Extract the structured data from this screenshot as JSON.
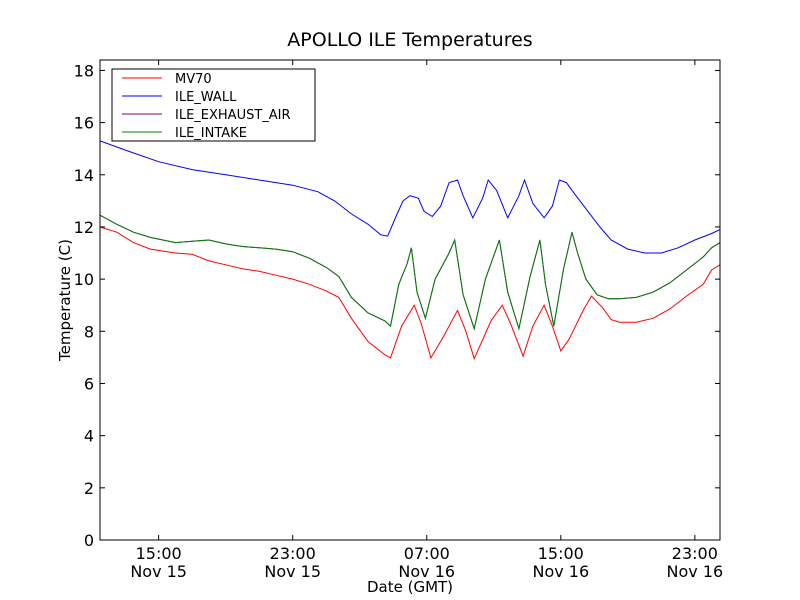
{
  "chart_data": {
    "type": "line",
    "title": "APOLLO ILE Temperatures",
    "xlabel": "Date (GMT)",
    "ylabel": "Temperature (C)",
    "ylim": [
      0,
      18.4
    ],
    "xlim": [
      "Nov 15 11:30",
      "Nov 17 00:30"
    ],
    "grid": false,
    "legend_position": "top-left",
    "yticks": [
      {
        "value": 0,
        "label": "0"
      },
      {
        "value": 2,
        "label": "2"
      },
      {
        "value": 4,
        "label": "4"
      },
      {
        "value": 6,
        "label": "6"
      },
      {
        "value": 8,
        "label": "8"
      },
      {
        "value": 10,
        "label": "10"
      },
      {
        "value": 12,
        "label": "12"
      },
      {
        "value": 14,
        "label": "14"
      },
      {
        "value": 16,
        "label": "16"
      },
      {
        "value": 18,
        "label": "18"
      }
    ],
    "xticks": [
      {
        "value": "Nov 15 15:00",
        "time": "15:00",
        "date": "Nov 15"
      },
      {
        "value": "Nov 15 23:00",
        "time": "23:00",
        "date": "Nov 15"
      },
      {
        "value": "Nov 16 07:00",
        "time": "07:00",
        "date": "Nov 16"
      },
      {
        "value": "Nov 16 15:00",
        "time": "15:00",
        "date": "Nov 16"
      },
      {
        "value": "Nov 16 23:00",
        "time": "23:00",
        "date": "Nov 16"
      }
    ],
    "series": [
      {
        "name": "MV70",
        "color": "#ff0000",
        "points": [
          [
            "Nov 15 11:30",
            12.0
          ],
          [
            "Nov 15 12:30",
            11.8
          ],
          [
            "Nov 15 13:30",
            11.4
          ],
          [
            "Nov 15 14:30",
            11.15
          ],
          [
            "Nov 15 16:00",
            11.0
          ],
          [
            "Nov 15 17:00",
            10.95
          ],
          [
            "Nov 15 18:00",
            10.7
          ],
          [
            "Nov 15 19:00",
            10.55
          ],
          [
            "Nov 15 20:00",
            10.4
          ],
          [
            "Nov 15 21:00",
            10.3
          ],
          [
            "Nov 15 22:00",
            10.15
          ],
          [
            "Nov 15 23:00",
            10.0
          ],
          [
            "Nov 16 00:00",
            9.8
          ],
          [
            "Nov 16 01:00",
            9.55
          ],
          [
            "Nov 16 01:45",
            9.3
          ],
          [
            "Nov 16 02:30",
            8.5
          ],
          [
            "Nov 16 03:30",
            7.6
          ],
          [
            "Nov 16 04:30",
            7.1
          ],
          [
            "Nov 16 04:50",
            6.98
          ],
          [
            "Nov 16 05:30",
            8.2
          ],
          [
            "Nov 16 06:15",
            9.0
          ],
          [
            "Nov 16 06:40",
            8.3
          ],
          [
            "Nov 16 07:15",
            6.98
          ],
          [
            "Nov 16 08:00",
            7.8
          ],
          [
            "Nov 16 08:50",
            8.8
          ],
          [
            "Nov 16 09:20",
            8.0
          ],
          [
            "Nov 16 09:50",
            6.95
          ],
          [
            "Nov 16 10:50",
            8.4
          ],
          [
            "Nov 16 11:30",
            9.0
          ],
          [
            "Nov 16 12:00",
            8.3
          ],
          [
            "Nov 16 12:45",
            7.05
          ],
          [
            "Nov 16 13:20",
            8.2
          ],
          [
            "Nov 16 14:00",
            9.0
          ],
          [
            "Nov 16 14:30",
            8.2
          ],
          [
            "Nov 16 15:00",
            7.25
          ],
          [
            "Nov 16 15:30",
            7.7
          ],
          [
            "Nov 16 16:20",
            8.8
          ],
          [
            "Nov 16 16:50",
            9.35
          ],
          [
            "Nov 16 17:30",
            8.9
          ],
          [
            "Nov 16 18:00",
            8.45
          ],
          [
            "Nov 16 18:30",
            8.35
          ],
          [
            "Nov 16 19:30",
            8.35
          ],
          [
            "Nov 16 20:30",
            8.5
          ],
          [
            "Nov 16 21:30",
            8.85
          ],
          [
            "Nov 16 22:30",
            9.35
          ],
          [
            "Nov 16 23:30",
            9.8
          ],
          [
            "Nov 17 00:00",
            10.35
          ],
          [
            "Nov 17 00:30",
            10.55
          ]
        ]
      },
      {
        "name": "ILE_WALL",
        "color": "#0000ff",
        "points": [
          [
            "Nov 15 11:30",
            15.3
          ],
          [
            "Nov 15 13:00",
            14.95
          ],
          [
            "Nov 15 15:00",
            14.5
          ],
          [
            "Nov 15 17:00",
            14.2
          ],
          [
            "Nov 15 19:00",
            14.0
          ],
          [
            "Nov 15 21:00",
            13.8
          ],
          [
            "Nov 15 23:00",
            13.6
          ],
          [
            "Nov 16 00:30",
            13.35
          ],
          [
            "Nov 16 01:30",
            13.0
          ],
          [
            "Nov 16 02:30",
            12.5
          ],
          [
            "Nov 16 03:30",
            12.1
          ],
          [
            "Nov 16 04:15",
            11.7
          ],
          [
            "Nov 16 04:40",
            11.65
          ],
          [
            "Nov 16 05:10",
            12.4
          ],
          [
            "Nov 16 05:35",
            13.0
          ],
          [
            "Nov 16 06:00",
            13.2
          ],
          [
            "Nov 16 06:30",
            13.1
          ],
          [
            "Nov 16 06:50",
            12.6
          ],
          [
            "Nov 16 07:20",
            12.4
          ],
          [
            "Nov 16 07:50",
            12.8
          ],
          [
            "Nov 16 08:20",
            13.7
          ],
          [
            "Nov 16 08:50",
            13.8
          ],
          [
            "Nov 16 09:10",
            13.2
          ],
          [
            "Nov 16 09:45",
            12.35
          ],
          [
            "Nov 16 10:20",
            13.1
          ],
          [
            "Nov 16 10:40",
            13.8
          ],
          [
            "Nov 16 11:10",
            13.4
          ],
          [
            "Nov 16 11:50",
            12.35
          ],
          [
            "Nov 16 12:30",
            13.2
          ],
          [
            "Nov 16 12:50",
            13.8
          ],
          [
            "Nov 16 13:20",
            12.9
          ],
          [
            "Nov 16 14:00",
            12.35
          ],
          [
            "Nov 16 14:30",
            12.8
          ],
          [
            "Nov 16 14:55",
            13.8
          ],
          [
            "Nov 16 15:20",
            13.7
          ],
          [
            "Nov 16 15:40",
            13.4
          ],
          [
            "Nov 16 16:30",
            12.7
          ],
          [
            "Nov 16 17:20",
            12.0
          ],
          [
            "Nov 16 18:00",
            11.5
          ],
          [
            "Nov 16 19:00",
            11.15
          ],
          [
            "Nov 16 20:00",
            11.0
          ],
          [
            "Nov 16 21:00",
            11.0
          ],
          [
            "Nov 16 22:00",
            11.2
          ],
          [
            "Nov 16 23:00",
            11.5
          ],
          [
            "Nov 17 00:00",
            11.75
          ],
          [
            "Nov 17 00:30",
            11.9
          ]
        ]
      },
      {
        "name": "ILE_EXHAUST_AIR",
        "color": "#800080",
        "points": [
          [
            "Nov 15 11:30",
            12.45
          ],
          [
            "Nov 15 12:30",
            12.1
          ],
          [
            "Nov 15 13:30",
            11.8
          ],
          [
            "Nov 15 14:30",
            11.6
          ],
          [
            "Nov 15 16:00",
            11.4
          ],
          [
            "Nov 15 17:00",
            11.45
          ],
          [
            "Nov 15 18:00",
            11.5
          ],
          [
            "Nov 15 19:00",
            11.35
          ],
          [
            "Nov 15 20:00",
            11.25
          ],
          [
            "Nov 15 21:00",
            11.2
          ],
          [
            "Nov 15 22:00",
            11.15
          ],
          [
            "Nov 15 23:00",
            11.05
          ],
          [
            "Nov 16 00:00",
            10.8
          ],
          [
            "Nov 16 01:00",
            10.45
          ],
          [
            "Nov 16 01:45",
            10.1
          ],
          [
            "Nov 16 02:30",
            9.3
          ],
          [
            "Nov 16 03:30",
            8.7
          ],
          [
            "Nov 16 04:30",
            8.4
          ],
          [
            "Nov 16 04:50",
            8.2
          ],
          [
            "Nov 16 05:20",
            9.8
          ],
          [
            "Nov 16 05:50",
            10.6
          ],
          [
            "Nov 16 06:05",
            11.2
          ],
          [
            "Nov 16 06:25",
            9.5
          ],
          [
            "Nov 16 06:55",
            8.5
          ],
          [
            "Nov 16 07:30",
            10.0
          ],
          [
            "Nov 16 08:20",
            11.0
          ],
          [
            "Nov 16 08:40",
            11.5
          ],
          [
            "Nov 16 09:10",
            9.4
          ],
          [
            "Nov 16 09:50",
            8.1
          ],
          [
            "Nov 16 10:30",
            10.0
          ],
          [
            "Nov 16 11:20",
            11.5
          ],
          [
            "Nov 16 11:50",
            9.5
          ],
          [
            "Nov 16 12:30",
            8.1
          ],
          [
            "Nov 16 13:10",
            10.1
          ],
          [
            "Nov 16 13:45",
            11.5
          ],
          [
            "Nov 16 14:05",
            9.8
          ],
          [
            "Nov 16 14:35",
            8.2
          ],
          [
            "Nov 16 15:10",
            10.4
          ],
          [
            "Nov 16 15:40",
            11.8
          ],
          [
            "Nov 16 16:00",
            11.0
          ],
          [
            "Nov 16 16:30",
            10.0
          ],
          [
            "Nov 16 17:10",
            9.4
          ],
          [
            "Nov 16 17:50",
            9.25
          ],
          [
            "Nov 16 18:30",
            9.25
          ],
          [
            "Nov 16 19:30",
            9.3
          ],
          [
            "Nov 16 20:30",
            9.5
          ],
          [
            "Nov 16 21:30",
            9.85
          ],
          [
            "Nov 16 22:30",
            10.35
          ],
          [
            "Nov 16 23:30",
            10.85
          ],
          [
            "Nov 17 00:00",
            11.2
          ],
          [
            "Nov 17 00:30",
            11.4
          ]
        ]
      },
      {
        "name": "ILE_INTAKE",
        "color": "#008000",
        "points": [
          [
            "Nov 15 11:30",
            12.45
          ],
          [
            "Nov 15 12:30",
            12.1
          ],
          [
            "Nov 15 13:30",
            11.8
          ],
          [
            "Nov 15 14:30",
            11.6
          ],
          [
            "Nov 15 16:00",
            11.4
          ],
          [
            "Nov 15 17:00",
            11.45
          ],
          [
            "Nov 15 18:00",
            11.5
          ],
          [
            "Nov 15 19:00",
            11.35
          ],
          [
            "Nov 15 20:00",
            11.25
          ],
          [
            "Nov 15 21:00",
            11.2
          ],
          [
            "Nov 15 22:00",
            11.15
          ],
          [
            "Nov 15 23:00",
            11.05
          ],
          [
            "Nov 16 00:00",
            10.8
          ],
          [
            "Nov 16 01:00",
            10.45
          ],
          [
            "Nov 16 01:45",
            10.1
          ],
          [
            "Nov 16 02:30",
            9.3
          ],
          [
            "Nov 16 03:30",
            8.7
          ],
          [
            "Nov 16 04:30",
            8.4
          ],
          [
            "Nov 16 04:50",
            8.2
          ],
          [
            "Nov 16 05:20",
            9.8
          ],
          [
            "Nov 16 05:50",
            10.6
          ],
          [
            "Nov 16 06:05",
            11.2
          ],
          [
            "Nov 16 06:25",
            9.5
          ],
          [
            "Nov 16 06:55",
            8.5
          ],
          [
            "Nov 16 07:30",
            10.0
          ],
          [
            "Nov 16 08:20",
            11.0
          ],
          [
            "Nov 16 08:40",
            11.5
          ],
          [
            "Nov 16 09:10",
            9.4
          ],
          [
            "Nov 16 09:50",
            8.1
          ],
          [
            "Nov 16 10:30",
            10.0
          ],
          [
            "Nov 16 11:20",
            11.5
          ],
          [
            "Nov 16 11:50",
            9.5
          ],
          [
            "Nov 16 12:30",
            8.1
          ],
          [
            "Nov 16 13:10",
            10.1
          ],
          [
            "Nov 16 13:45",
            11.5
          ],
          [
            "Nov 16 14:05",
            9.8
          ],
          [
            "Nov 16 14:35",
            8.2
          ],
          [
            "Nov 16 15:10",
            10.4
          ],
          [
            "Nov 16 15:40",
            11.8
          ],
          [
            "Nov 16 16:00",
            11.0
          ],
          [
            "Nov 16 16:30",
            10.0
          ],
          [
            "Nov 16 17:10",
            9.4
          ],
          [
            "Nov 16 17:50",
            9.25
          ],
          [
            "Nov 16 18:30",
            9.25
          ],
          [
            "Nov 16 19:30",
            9.3
          ],
          [
            "Nov 16 20:30",
            9.5
          ],
          [
            "Nov 16 21:30",
            9.85
          ],
          [
            "Nov 16 22:30",
            10.35
          ],
          [
            "Nov 16 23:30",
            10.85
          ],
          [
            "Nov 17 00:00",
            11.2
          ],
          [
            "Nov 17 00:30",
            11.4
          ]
        ]
      }
    ]
  }
}
